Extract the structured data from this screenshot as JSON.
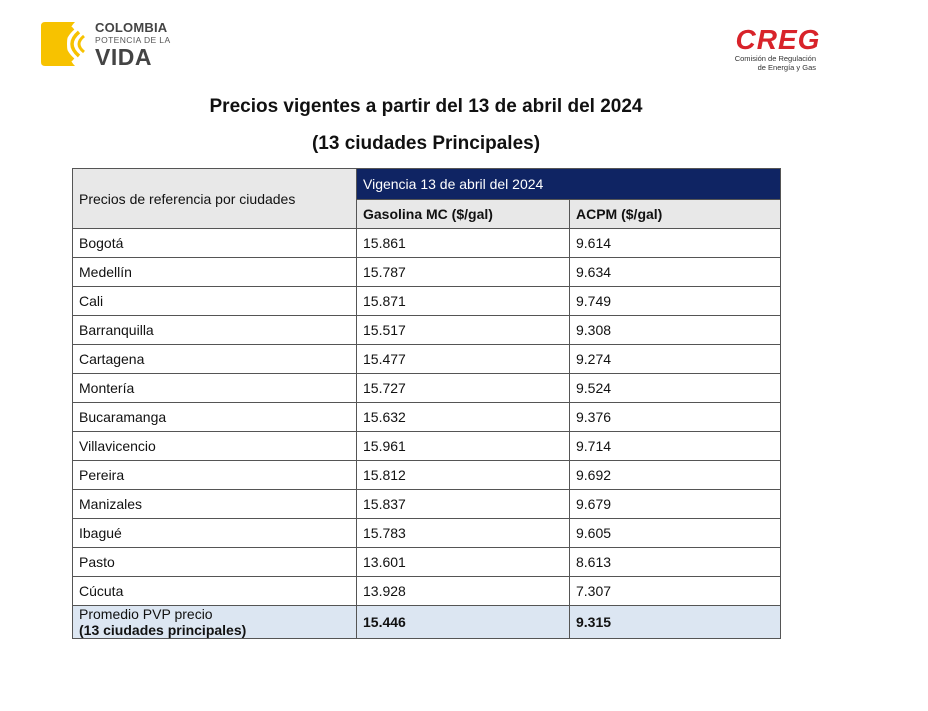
{
  "logos": {
    "colombia": {
      "line1": "COLOMBIA",
      "line2": "POTENCIA DE LA",
      "line3": "VIDA",
      "color": "#f7c200"
    },
    "creg": {
      "word": "CREG",
      "sub1": "Comisión de Regulación",
      "sub2": "de Energía y Gas",
      "color": "#d8232a"
    }
  },
  "title": "Precios vigentes a partir del 13 de abril del 2024",
  "subtitle": "(13 ciudades Principales)",
  "table": {
    "row_header": "Precios de referencia por ciudades",
    "group_header": "Vigencia 13 de abril del 2024",
    "columns": [
      "Gasolina MC ($/gal)",
      "ACPM ($/gal)"
    ],
    "rows": [
      {
        "city": "Bogotá",
        "gasolina": "15.861",
        "acpm": "9.614"
      },
      {
        "city": "Medellín",
        "gasolina": "15.787",
        "acpm": "9.634"
      },
      {
        "city": "Cali",
        "gasolina": "15.871",
        "acpm": "9.749"
      },
      {
        "city": "Barranquilla",
        "gasolina": "15.517",
        "acpm": "9.308"
      },
      {
        "city": "Cartagena",
        "gasolina": "15.477",
        "acpm": "9.274"
      },
      {
        "city": "Montería",
        "gasolina": "15.727",
        "acpm": "9.524"
      },
      {
        "city": "Bucaramanga",
        "gasolina": "15.632",
        "acpm": "9.376"
      },
      {
        "city": "Villavicencio",
        "gasolina": "15.961",
        "acpm": "9.714"
      },
      {
        "city": "Pereira",
        "gasolina": "15.812",
        "acpm": "9.692"
      },
      {
        "city": "Manizales",
        "gasolina": "15.837",
        "acpm": "9.679"
      },
      {
        "city": "Ibagué",
        "gasolina": "15.783",
        "acpm": "9.605"
      },
      {
        "city": "Pasto",
        "gasolina": "13.601",
        "acpm": "8.613"
      },
      {
        "city": "Cúcuta",
        "gasolina": "13.928",
        "acpm": "7.307"
      }
    ],
    "average": {
      "label_line1": "Promedio PVP precio",
      "label_line2": "(13 ciudades principales)",
      "gasolina": "15.446",
      "acpm": "9.315"
    },
    "colors": {
      "header_dark": "#0f2463",
      "header_light": "#e8e8e8",
      "average_bg": "#dce6f2"
    }
  }
}
